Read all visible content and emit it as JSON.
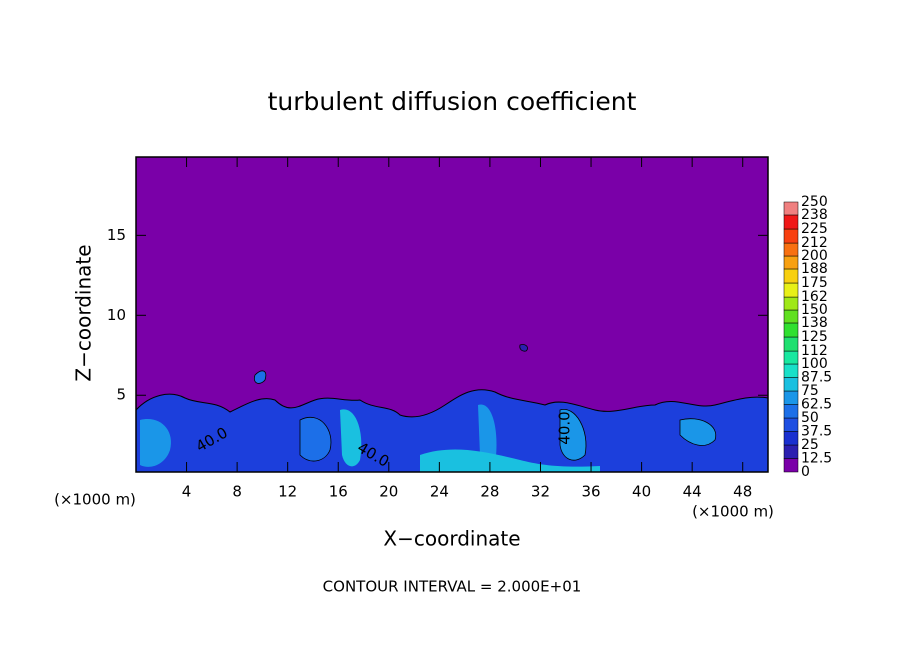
{
  "chart_data": {
    "type": "contour",
    "title": "turbulent diffusion coefficient",
    "x_label": "X−coordinate",
    "y_label": "Z−coordinate",
    "x_unit": "(×1000 m)",
    "y_unit": "(×1000 m)",
    "footnote": "CONTOUR INTERVAL = 2.000E+01",
    "xlim": [
      0,
      50
    ],
    "ylim": [
      0.2,
      19.9
    ],
    "xticks": [
      4,
      8,
      12,
      16,
      20,
      24,
      28,
      32,
      36,
      40,
      44,
      48
    ],
    "yticks": [
      5,
      10,
      15
    ],
    "contour_labels": [
      "40.0",
      "40.0",
      "40.0"
    ],
    "colorbar": {
      "levels": [
        0,
        12.5,
        25,
        37.5,
        50,
        62.5,
        75,
        87.5,
        100,
        112,
        125,
        138,
        150,
        162,
        175,
        188,
        200,
        212,
        225,
        238,
        250
      ],
      "colors": [
        "#7a00a8",
        "#2c1fb0",
        "#1a30d0",
        "#1e4fe2",
        "#1c6fe8",
        "#1a96e8",
        "#1ac0e0",
        "#19e0c8",
        "#18e8a0",
        "#20e070",
        "#30e030",
        "#60e020",
        "#a0e818",
        "#e8f018",
        "#f8d010",
        "#f8a010",
        "#f87010",
        "#f84010",
        "#f01818",
        "#f08080"
      ]
    }
  }
}
